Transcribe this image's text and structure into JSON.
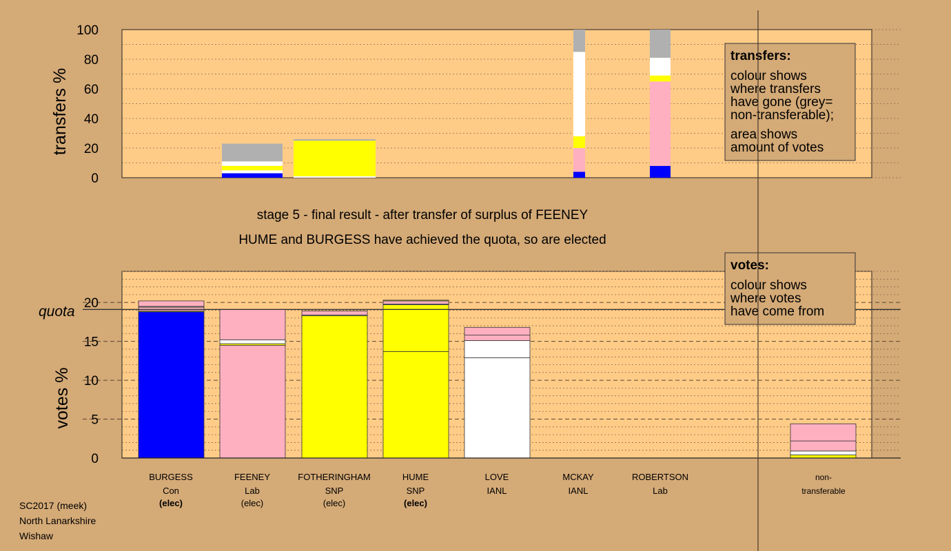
{
  "header": {
    "stage_line": "stage 5 - final result - after transfer of surplus of FEENEY",
    "elected_line": "HUME and BURGESS have achieved the quota, so are elected"
  },
  "footer": {
    "lines": [
      "SC2017 (meek)",
      "North Lanarkshire",
      "Wishaw"
    ]
  },
  "colors": {
    "background": "#d4aa77",
    "plot_bg": "#ffcc88",
    "Con": "#0000ff",
    "Lab": "#ffb0c0",
    "SNP": "#ffff00",
    "IANL": "#ffffff",
    "non_transferable": "#b0b0b0",
    "legend_bg": "#d4aa77"
  },
  "legends": {
    "transfers": {
      "title": "transfers:",
      "lines": [
        "colour shows",
        "where transfers",
        "have gone (grey=",
        "non-transferable);"
      ],
      "lines2": [
        "area shows",
        "amount of votes"
      ]
    },
    "votes": {
      "title": "votes:",
      "lines": [
        "colour shows",
        "where votes",
        "have come from"
      ]
    }
  },
  "candidates": [
    {
      "name": "BURGESS",
      "party": "Con",
      "status": "(elec)",
      "status_bold": true
    },
    {
      "name": "FEENEY",
      "party": "Lab",
      "status": "(elec)",
      "status_bold": false
    },
    {
      "name": "FOTHERINGHAM",
      "party": "SNP",
      "status": "(elec)",
      "status_bold": false
    },
    {
      "name": "HUME",
      "party": "SNP",
      "status": "(elec)",
      "status_bold": true
    },
    {
      "name": "LOVE",
      "party": "IANL",
      "status": "",
      "status_bold": false
    },
    {
      "name": "MCKAY",
      "party": "IANL",
      "status": "",
      "status_bold": false
    },
    {
      "name": "ROBERTSON",
      "party": "Lab",
      "status": "",
      "status_bold": false
    }
  ],
  "nontransferable_label": [
    "non-",
    "transferable"
  ],
  "chart_data": [
    {
      "type": "bar",
      "stacked": true,
      "ylabel": "transfers %",
      "ylim": [
        0,
        100
      ],
      "yticks": [
        0,
        20,
        40,
        60,
        80,
        100
      ],
      "grid": true,
      "note": "stacked transfer bars per transfer event",
      "bars": [
        {
          "position": "left of FEENEY",
          "segments": [
            {
              "color": "Con",
              "value": 3
            },
            {
              "color": "IANL",
              "value": 2
            },
            {
              "color": "SNP",
              "value": 3
            },
            {
              "color": "IANL",
              "value": 3
            },
            {
              "color": "non_transferable",
              "value": 12
            }
          ]
        },
        {
          "position": "FOTHERINGHAM",
          "segments": [
            {
              "color": "IANL",
              "value": 1
            },
            {
              "color": "SNP",
              "value": 24
            },
            {
              "color": "non_transferable",
              "value": 1
            }
          ]
        },
        {
          "position": "MCKAY",
          "segments": [
            {
              "color": "Con",
              "value": 4
            },
            {
              "color": "Lab",
              "value": 16
            },
            {
              "color": "SNP",
              "value": 8
            },
            {
              "color": "IANL",
              "value": 57
            },
            {
              "color": "non_transferable",
              "value": 15
            }
          ]
        },
        {
          "position": "ROBERTSON",
          "segments": [
            {
              "color": "Con",
              "value": 8
            },
            {
              "color": "Lab",
              "value": 57
            },
            {
              "color": "SNP",
              "value": 4
            },
            {
              "color": "IANL",
              "value": 12
            },
            {
              "color": "non_transferable",
              "value": 19
            }
          ]
        }
      ]
    },
    {
      "type": "bar",
      "stacked": true,
      "ylabel": "votes %",
      "ylim": [
        0,
        24
      ],
      "yticks": [
        0,
        5,
        10,
        15,
        20
      ],
      "quota": 19.1,
      "quota_label": "quota",
      "grid": true,
      "categories": [
        "BURGESS",
        "FEENEY",
        "FOTHERINGHAM",
        "HUME",
        "LOVE",
        "MCKAY",
        "ROBERTSON",
        "non-transferable"
      ],
      "stacks": [
        {
          "candidate": "BURGESS",
          "segments": [
            {
              "color": "Con",
              "value": 18.8
            },
            {
              "color": "SNP",
              "value": 0.1
            },
            {
              "color": "Lab",
              "value": 0.5
            },
            {
              "color": "IANL",
              "value": 0.1
            },
            {
              "color": "Lab",
              "value": 0.7
            }
          ]
        },
        {
          "candidate": "FEENEY",
          "segments": [
            {
              "color": "Lab",
              "value": 14.5
            },
            {
              "color": "SNP",
              "value": 0.2
            },
            {
              "color": "IANL",
              "value": 0.5
            },
            {
              "color": "Lab",
              "value": 3.9
            }
          ]
        },
        {
          "candidate": "FOTHERINGHAM",
          "segments": [
            {
              "color": "SNP",
              "value": 18.3
            },
            {
              "color": "IANL",
              "value": 0.1
            },
            {
              "color": "Lab",
              "value": 0.5
            }
          ]
        },
        {
          "candidate": "HUME",
          "segments": [
            {
              "color": "SNP",
              "value": 13.7
            },
            {
              "color": "SNP",
              "value": 6.0
            },
            {
              "color": "IANL",
              "value": 0.1
            },
            {
              "color": "Lab",
              "value": 0.4
            },
            {
              "color": "SNP",
              "value": 0.1
            }
          ]
        },
        {
          "candidate": "LOVE",
          "segments": [
            {
              "color": "IANL",
              "value": 12.9
            },
            {
              "color": "IANL",
              "value": 2.2
            },
            {
              "color": "Lab",
              "value": 0.7
            },
            {
              "color": "Lab",
              "value": 1.0
            }
          ]
        },
        {
          "candidate": "MCKAY",
          "segments": []
        },
        {
          "candidate": "ROBERTSON",
          "segments": []
        },
        {
          "candidate": "non-transferable",
          "segments": [
            {
              "color": "SNP",
              "value": 0.4
            },
            {
              "color": "IANL",
              "value": 0.5
            },
            {
              "color": "Lab",
              "value": 1.3
            },
            {
              "color": "Lab",
              "value": 2.2
            }
          ]
        }
      ]
    }
  ]
}
